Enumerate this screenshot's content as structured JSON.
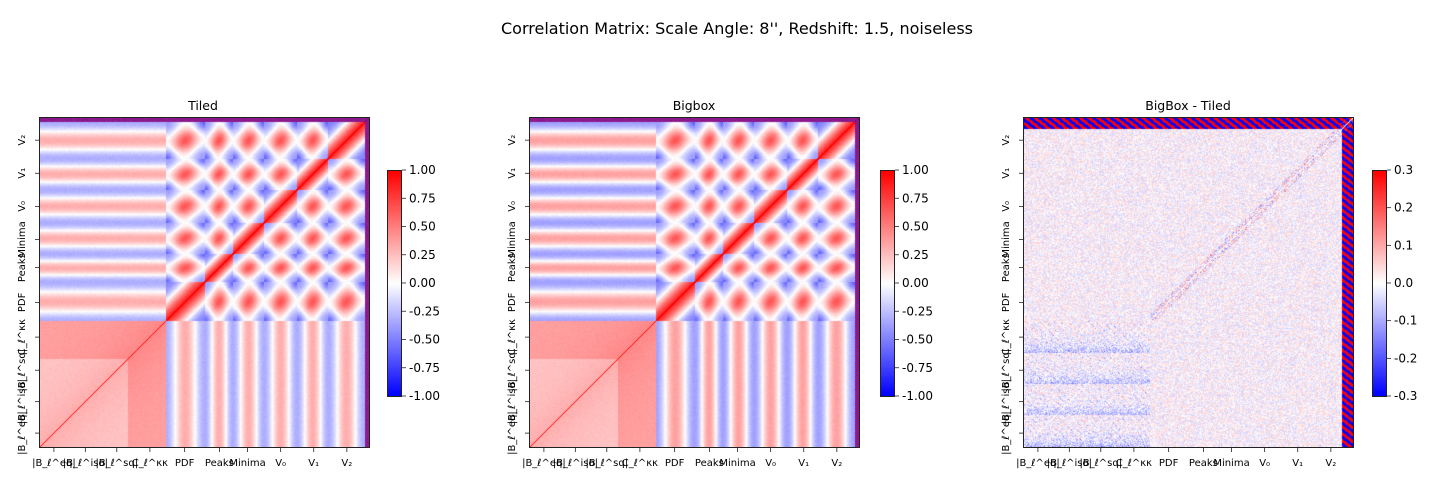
{
  "figure": {
    "title": "Correlation Matrix: Scale Angle: 8'', Redshift: 1.5, noiseless"
  },
  "colors": {
    "positive": "#ff0000",
    "zero": "#ffffff",
    "negative": "#0000ff",
    "frame": "#222222"
  },
  "chart_data": [
    {
      "type": "heatmap",
      "title": "Tiled",
      "colormap": "bwr",
      "colorbar": {
        "vmin": -1.0,
        "vmax": 1.0,
        "ticks": [
          "1.00",
          "0.75",
          "0.50",
          "0.25",
          "0.00",
          "-0.25",
          "-0.50",
          "-0.75",
          "-1.00"
        ]
      },
      "x_tick_labels": [
        "|B_ℓ^eq|",
        "|B_ℓ^iso|",
        "|B_ℓ^sq|",
        "C_ℓ^κκ",
        "PDF",
        "Peaks",
        "Minima",
        "V₀",
        "V₁",
        "V₂"
      ],
      "y_tick_labels": [
        "V₂",
        "V₁",
        "V₀",
        "Minima",
        "Peaks",
        "PDF",
        "C_ℓ^κκ",
        "|B_ℓ^sq|",
        "|B_ℓ^iso|",
        "|B_ℓ^eq|"
      ],
      "diagonal": 1.0
    },
    {
      "type": "heatmap",
      "title": "Bigbox",
      "colormap": "bwr",
      "colorbar": {
        "vmin": -1.0,
        "vmax": 1.0,
        "ticks": [
          "1.00",
          "0.75",
          "0.50",
          "0.25",
          "0.00",
          "-0.25",
          "-0.50",
          "-0.75",
          "-1.00"
        ]
      },
      "x_tick_labels": [
        "|B_ℓ^eq|",
        "|B_ℓ^iso|",
        "|B_ℓ^sq|",
        "C_ℓ^κκ",
        "PDF",
        "Peaks",
        "Minima",
        "V₀",
        "V₁",
        "V₂"
      ],
      "y_tick_labels": [
        "V₂",
        "V₁",
        "V₀",
        "Minima",
        "Peaks",
        "PDF",
        "C_ℓ^κκ",
        "|B_ℓ^sq|",
        "|B_ℓ^iso|",
        "|B_ℓ^eq|"
      ],
      "diagonal": 1.0
    },
    {
      "type": "heatmap",
      "title": "BigBox - Tiled",
      "colormap": "bwr",
      "colorbar": {
        "vmin": -0.3,
        "vmax": 0.3,
        "ticks": [
          "0.3",
          "0.2",
          "0.1",
          "0.0",
          "-0.1",
          "-0.2",
          "-0.3"
        ]
      },
      "x_tick_labels": [
        "|B_ℓ^eq|",
        "|B_ℓ^iso|",
        "|B_ℓ^sq|",
        "C_ℓ^κκ",
        "PDF",
        "Peaks",
        "Minima",
        "V₀",
        "V₁",
        "V₂"
      ],
      "y_tick_labels": [
        "V₂",
        "V₁",
        "V₀",
        "Minima",
        "Peaks",
        "PDF",
        "C_ℓ^κκ",
        "|B_ℓ^sq|",
        "|B_ℓ^iso|",
        "|B_ℓ^eq|"
      ],
      "diagonal": 0.0
    }
  ]
}
